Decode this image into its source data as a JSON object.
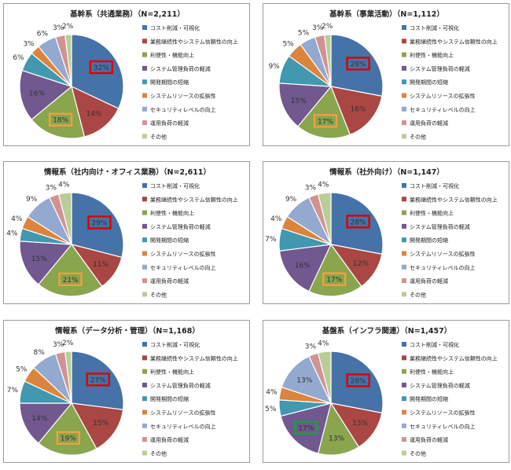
{
  "legend": [
    {
      "label": "コスト削減・可視化",
      "color": "#4572A7"
    },
    {
      "label": "業務継続性やシステム信頼性の向上",
      "color": "#AA4643"
    },
    {
      "label": "利便性・機能向上",
      "color": "#89A54E"
    },
    {
      "label": "システム管理負荷の軽減",
      "color": "#71588F"
    },
    {
      "label": "開発期間の短縮",
      "color": "#4198AF"
    },
    {
      "label": "システムリソースの拡張性",
      "color": "#DB843D"
    },
    {
      "label": "セキュリティレベルの向上",
      "color": "#93A9CF"
    },
    {
      "label": "運用負荷の軽減",
      "color": "#D19392"
    },
    {
      "label": "その他",
      "color": "#B9CD96"
    }
  ],
  "chart_data": [
    {
      "type": "pie",
      "title": "基幹系（共通業務）（N=2,211）",
      "values": [
        32,
        14,
        18,
        16,
        6,
        3,
        6,
        3,
        2
      ],
      "labels": [
        "32%",
        "14%",
        "18%",
        "16%",
        "6%",
        "3%",
        "6%",
        "3%",
        "2%"
      ],
      "highlights": [
        {
          "slice": 0,
          "color": "#e00000"
        },
        {
          "slice": 2,
          "color": "#f0a040"
        }
      ]
    },
    {
      "type": "pie",
      "title": "基幹系（事業活動）（N=1,112）",
      "values": [
        28,
        16,
        17,
        15,
        9,
        5,
        5,
        3,
        2
      ],
      "labels": [
        "28%",
        "16%",
        "17%",
        "15%",
        "9%",
        "5%",
        "5%",
        "3%",
        "2%"
      ],
      "highlights": [
        {
          "slice": 0,
          "color": "#e00000"
        },
        {
          "slice": 2,
          "color": "#f0a040"
        }
      ]
    },
    {
      "type": "pie",
      "title": "情報系（社内向け・オフィス業務）（N=2,611）",
      "values": [
        29,
        11,
        21,
        15,
        4,
        4,
        9,
        3,
        4
      ],
      "labels": [
        "29%",
        "11%",
        "21%",
        "15%",
        "4%",
        "4%",
        "9%",
        "3%",
        "4%"
      ],
      "highlights": [
        {
          "slice": 0,
          "color": "#e00000"
        },
        {
          "slice": 2,
          "color": "#f0a040"
        }
      ]
    },
    {
      "type": "pie",
      "title": "情報系（社外向け）（N=1,147）",
      "values": [
        28,
        12,
        17,
        16,
        7,
        4,
        9,
        3,
        4
      ],
      "labels": [
        "28%",
        "12%",
        "17%",
        "16%",
        "7%",
        "4%",
        "9%",
        "3%",
        "4%"
      ],
      "highlights": [
        {
          "slice": 0,
          "color": "#e00000"
        },
        {
          "slice": 2,
          "color": "#f0a040"
        }
      ]
    },
    {
      "type": "pie",
      "title": "情報系（データ分析・管理）（N=1,168）",
      "values": [
        27,
        15,
        19,
        14,
        7,
        5,
        8,
        3,
        2
      ],
      "labels": [
        "27%",
        "15%",
        "19%",
        "14%",
        "7%",
        "5%",
        "8%",
        "3%",
        "2%"
      ],
      "highlights": [
        {
          "slice": 0,
          "color": "#e00000"
        },
        {
          "slice": 2,
          "color": "#f0a040"
        }
      ]
    },
    {
      "type": "pie",
      "title": "基盤系（インフラ関連）（N=1,457）",
      "values": [
        28,
        13,
        13,
        17,
        5,
        4,
        13,
        3,
        4
      ],
      "labels": [
        "28%",
        "13%",
        "13%",
        "17%",
        "5%",
        "4%",
        "13%",
        "3%",
        "4%"
      ],
      "highlights": [
        {
          "slice": 0,
          "color": "#e00000"
        },
        {
          "slice": 3,
          "color": "#1aa040"
        }
      ]
    }
  ]
}
